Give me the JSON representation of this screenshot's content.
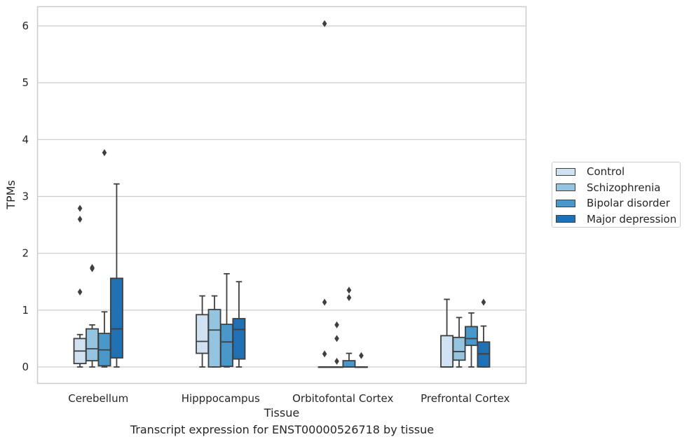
{
  "chart_data": {
    "type": "box",
    "title": "Transcript expression for ENST00000526718 by tissue",
    "xlabel": "Tissue",
    "ylabel": "TPMs",
    "ylim": [
      -0.3,
      6.35
    ],
    "yticks": [
      0,
      1,
      2,
      3,
      4,
      5,
      6
    ],
    "grid": true,
    "legend_position": "right",
    "categories": [
      "Cerebellum",
      "Hipppocampus",
      "Orbitofontal Cortex",
      "Prefrontal Cortex"
    ],
    "series": [
      {
        "name": "Control",
        "color": "#d0e1f2",
        "boxes": [
          {
            "min": 0.0,
            "q1": 0.06,
            "median": 0.28,
            "q3": 0.5,
            "max": 0.57,
            "outliers": [
              1.32,
              2.6,
              2.79
            ]
          },
          {
            "min": 0.0,
            "q1": 0.24,
            "median": 0.45,
            "q3": 0.92,
            "max": 1.25,
            "outliers": []
          },
          {
            "min": 0.0,
            "q1": 0.0,
            "median": 0.0,
            "q3": 0.0,
            "max": 0.0,
            "outliers": [
              0.23,
              1.14,
              6.04
            ]
          },
          {
            "min": 0.0,
            "q1": 0.0,
            "median": 0.0,
            "q3": 0.55,
            "max": 1.19,
            "outliers": []
          }
        ]
      },
      {
        "name": "Schizophrenia",
        "color": "#94c4df",
        "boxes": [
          {
            "min": 0.0,
            "q1": 0.11,
            "median": 0.32,
            "q3": 0.67,
            "max": 0.74,
            "outliers": [
              1.73,
              1.75
            ]
          },
          {
            "min": 0.0,
            "q1": 0.0,
            "median": 0.65,
            "q3": 1.01,
            "max": 1.25,
            "outliers": []
          },
          {
            "min": 0.0,
            "q1": 0.0,
            "median": 0.0,
            "q3": 0.0,
            "max": 0.0,
            "outliers": [
              0.1,
              0.5,
              0.74
            ]
          },
          {
            "min": 0.0,
            "q1": 0.12,
            "median": 0.27,
            "q3": 0.52,
            "max": 0.87,
            "outliers": []
          }
        ]
      },
      {
        "name": "Bipolar disorder",
        "color": "#4a98c9",
        "boxes": [
          {
            "min": 0.0,
            "q1": 0.02,
            "median": 0.3,
            "q3": 0.59,
            "max": 0.97,
            "outliers": [
              3.77
            ]
          },
          {
            "min": 0.0,
            "q1": 0.01,
            "median": 0.44,
            "q3": 0.75,
            "max": 1.64,
            "outliers": []
          },
          {
            "min": 0.0,
            "q1": 0.0,
            "median": 0.0,
            "q3": 0.11,
            "max": 0.24,
            "outliers": [
              1.22,
              1.35
            ]
          },
          {
            "min": 0.0,
            "q1": 0.38,
            "median": 0.5,
            "q3": 0.71,
            "max": 0.95,
            "outliers": []
          }
        ]
      },
      {
        "name": "Major depression",
        "color": "#2070b4",
        "boxes": [
          {
            "min": 0.0,
            "q1": 0.16,
            "median": 0.67,
            "q3": 1.56,
            "max": 3.22,
            "outliers": []
          },
          {
            "min": 0.0,
            "q1": 0.14,
            "median": 0.66,
            "q3": 0.85,
            "max": 1.5,
            "outliers": []
          },
          {
            "min": 0.0,
            "q1": 0.0,
            "median": 0.0,
            "q3": 0.0,
            "max": 0.0,
            "outliers": [
              0.2
            ]
          },
          {
            "min": 0.0,
            "q1": 0.0,
            "median": 0.23,
            "q3": 0.44,
            "max": 0.72,
            "outliers": [
              1.14
            ]
          }
        ]
      }
    ]
  }
}
